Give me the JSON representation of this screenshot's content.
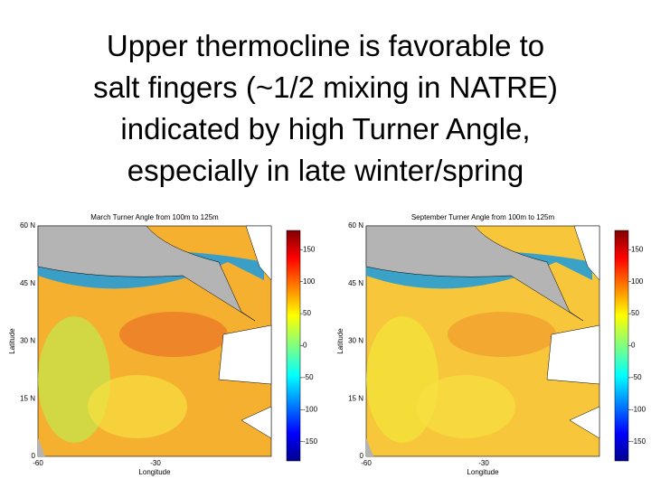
{
  "slide": {
    "title_lines": [
      "Upper thermocline is favorable to",
      "salt fingers (~1/2 mixing in NATRE)",
      "indicated by high Turner Angle,",
      "especially in late winter/spring"
    ],
    "panels": [
      {
        "title": "March Turner Angle from 100m to 125m",
        "ylabel": "Latitude",
        "xlabel": "Longitude",
        "yticks": [
          "60 N",
          "45 N",
          "30 N",
          "15 N",
          "0"
        ],
        "xticks": [
          "-60",
          "-30"
        ],
        "colorbar_ticks": [
          150,
          100,
          50,
          0,
          -50,
          -100,
          -150
        ]
      },
      {
        "title": "September Turner Angle from 100m to 125m",
        "ylabel": "Latitude",
        "xlabel": "Longitude",
        "yticks": [
          "60 N",
          "45 N",
          "30 N",
          "15 N",
          "0"
        ],
        "xticks": [
          "-60",
          "-30"
        ],
        "colorbar_ticks": [
          150,
          100,
          50,
          0,
          -50,
          -100,
          -150
        ]
      }
    ]
  }
}
